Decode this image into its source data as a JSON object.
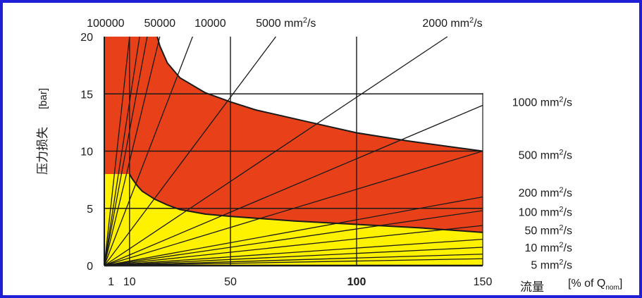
{
  "chart_data": {
    "type": "line",
    "xlabel": "流量",
    "xunit": {
      "prefix": "[% of Q",
      "sub": "nom",
      "suffix": "]"
    },
    "ylabel": "压力损失",
    "yunit": "[bar]",
    "xlim": [
      0,
      150
    ],
    "ylim": [
      0,
      20
    ],
    "x_ticks": [
      {
        "value": 1,
        "label": "1",
        "bold": false
      },
      {
        "value": 10,
        "label": "10",
        "bold": false
      },
      {
        "value": 50,
        "label": "50",
        "bold": false
      },
      {
        "value": 100,
        "label": "100",
        "bold": true
      },
      {
        "value": 150,
        "label": "150",
        "bold": false
      }
    ],
    "y_ticks": [
      {
        "value": 0,
        "label": "0"
      },
      {
        "value": 5,
        "label": "5"
      },
      {
        "value": 10,
        "label": "10"
      },
      {
        "value": 15,
        "label": "15"
      },
      {
        "value": 20,
        "label": "20"
      }
    ],
    "grid": {
      "x": [
        10,
        50,
        100
      ],
      "y": [
        5,
        10,
        15
      ]
    },
    "regions": [
      {
        "name": "red",
        "color": "#e8411a",
        "upper_boundary": [
          [
            0,
            20
          ],
          [
            21,
            20
          ],
          [
            22,
            19.2
          ],
          [
            25,
            17.7
          ],
          [
            30,
            16.4
          ],
          [
            40,
            15.1
          ],
          [
            50,
            14.3
          ],
          [
            60,
            13.6
          ],
          [
            80,
            12.6
          ],
          [
            100,
            11.6
          ],
          [
            120,
            10.9
          ],
          [
            150,
            10
          ]
        ]
      },
      {
        "name": "yellow",
        "color": "#fff200",
        "upper_boundary": [
          [
            0,
            8
          ],
          [
            10,
            8
          ],
          [
            11,
            7.6
          ],
          [
            13,
            7.0
          ],
          [
            15,
            6.5
          ],
          [
            20,
            5.8
          ],
          [
            25,
            5.3
          ],
          [
            30,
            4.9
          ],
          [
            40,
            4.5
          ],
          [
            50,
            4.3
          ],
          [
            75,
            3.9
          ],
          [
            100,
            3.6
          ],
          [
            125,
            3.3
          ],
          [
            150,
            2.9
          ]
        ]
      }
    ],
    "series": [
      {
        "name": "100000 mm²/s",
        "end": [
          10,
          20
        ]
      },
      {
        "name": "",
        "end": [
          14,
          20
        ]
      },
      {
        "name": "",
        "end": [
          17,
          20
        ]
      },
      {
        "name": "50000 mm²/s",
        "end": [
          22,
          20
        ]
      },
      {
        "name": "10000 mm²/s",
        "end": [
          35,
          20
        ]
      },
      {
        "name": "5000 mm²/s",
        "end": [
          68,
          20
        ]
      },
      {
        "name": "2000 mm²/s",
        "end": [
          136,
          20
        ]
      },
      {
        "name": "1000 mm²/s",
        "end": [
          150,
          14
        ]
      },
      {
        "name": "500 mm²/s",
        "end": [
          150,
          10
        ]
      },
      {
        "name": "200 mm²/s",
        "end": [
          150,
          6
        ]
      },
      {
        "name": "100 mm²/s",
        "end": [
          150,
          4.8
        ]
      },
      {
        "name": "50 mm²/s",
        "end": [
          150,
          3.5
        ]
      },
      {
        "name": "10 mm²/s",
        "end": [
          150,
          2.3
        ]
      },
      {
        "name": "",
        "end": [
          150,
          1.6
        ]
      },
      {
        "name": "5 mm²/s",
        "end": [
          150,
          1.0
        ]
      },
      {
        "name": "",
        "end": [
          150,
          0.6
        ]
      }
    ],
    "top_labels": [
      {
        "base": "100000",
        "anchor": 0.5
      },
      {
        "base": "50000",
        "anchor": 22
      },
      {
        "base": "10000",
        "anchor": 42
      },
      {
        "base": "5000 mm",
        "sup": "2",
        "suffix": "/s",
        "anchor": 72
      },
      {
        "base": "2000 mm",
        "sup": "2",
        "suffix": "/s",
        "anchor": 138
      }
    ],
    "right_labels": [
      {
        "base": "1000 mm",
        "sup": "2",
        "suffix": "/s",
        "y": 14.3
      },
      {
        "base": "500 mm",
        "sup": "2",
        "suffix": "/s",
        "y": 9.7
      },
      {
        "base": "200 mm",
        "sup": "2",
        "suffix": "/s",
        "y": 6.4
      },
      {
        "base": "100 mm",
        "sup": "2",
        "suffix": "/s",
        "y": 4.7
      },
      {
        "base": "50 mm",
        "sup": "2",
        "suffix": "/s",
        "y": 3.1
      },
      {
        "base": "10 mm",
        "sup": "2",
        "suffix": "/s",
        "y": 1.6
      },
      {
        "base": "5 mm",
        "sup": "2",
        "suffix": "/s",
        "y": 0.1
      }
    ],
    "colors": {
      "line": "#1a1a1a",
      "frame": "#1f1fd6",
      "grid": "#1a1a1a"
    }
  }
}
